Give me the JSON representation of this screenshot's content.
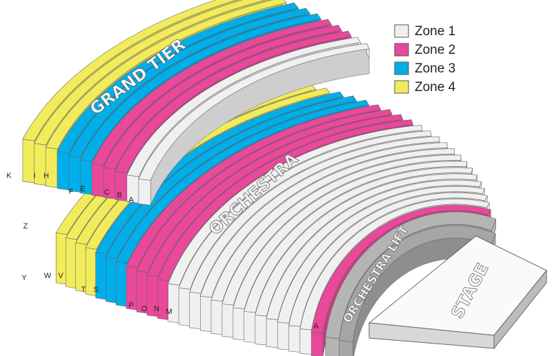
{
  "legend": [
    {
      "label": "Zone 1",
      "color": "#f0f0f0"
    },
    {
      "label": "Zone 2",
      "color": "#e9489b"
    },
    {
      "label": "Zone 3",
      "color": "#00aee9"
    },
    {
      "label": "Zone 4",
      "color": "#f2ec5c"
    }
  ],
  "sections": {
    "grand_tier": "GRAND TIER",
    "orchestra": "ORCHESTRA",
    "orchestra_lift": "ORCHESTRA LIFT",
    "stage": "STAGE"
  },
  "grand_tier_rows": [
    "K",
    "I",
    "H",
    "F",
    "E",
    "C",
    "B",
    "A"
  ],
  "orchestra_rows": [
    "Z",
    "Y",
    "W",
    "V",
    "T",
    "S",
    "P",
    "O",
    "N",
    "M",
    "A"
  ]
}
